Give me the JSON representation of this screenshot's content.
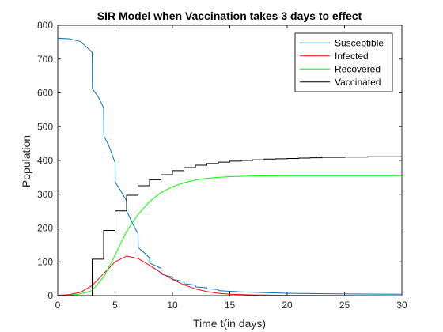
{
  "chart_data": {
    "type": "line",
    "title": "SIR Model when Vaccination takes 3 days to effect",
    "xlabel": "Time t(in days)",
    "ylabel": "Population",
    "xlim": [
      0,
      30
    ],
    "ylim": [
      0,
      800
    ],
    "xticks": [
      0,
      5,
      10,
      15,
      20,
      25,
      30
    ],
    "yticks": [
      0,
      100,
      200,
      300,
      400,
      500,
      600,
      700,
      800
    ],
    "grid": false,
    "legend_position": "top-right",
    "series": [
      {
        "name": "Susceptible",
        "color": "#0072bd",
        "step": false,
        "points": [
          [
            0,
            762
          ],
          [
            1,
            760
          ],
          [
            2,
            752
          ],
          [
            3,
            720
          ],
          [
            3.02,
            612
          ],
          [
            3.5,
            590
          ],
          [
            4,
            556
          ],
          [
            4.02,
            473
          ],
          [
            4.5,
            440
          ],
          [
            5,
            393
          ],
          [
            5.02,
            335
          ],
          [
            5.5,
            310
          ],
          [
            6,
            280
          ],
          [
            6.02,
            250
          ],
          [
            6.5,
            215
          ],
          [
            7,
            183
          ],
          [
            7.02,
            142
          ],
          [
            7.5,
            128
          ],
          [
            8,
            112
          ],
          [
            8.02,
            96
          ],
          [
            8.5,
            89
          ],
          [
            9,
            81
          ],
          [
            9.02,
            64
          ],
          [
            9.5,
            59
          ],
          [
            10,
            55
          ],
          [
            10.02,
            48
          ],
          [
            11,
            42
          ],
          [
            11.02,
            35
          ],
          [
            12,
            31
          ],
          [
            12.02,
            26
          ],
          [
            13,
            23
          ],
          [
            13.02,
            20
          ],
          [
            14,
            18
          ],
          [
            14.02,
            15
          ],
          [
            15,
            13
          ],
          [
            16,
            11
          ],
          [
            17,
            10
          ],
          [
            18,
            9
          ],
          [
            20,
            7
          ],
          [
            25,
            5
          ],
          [
            30,
            4
          ]
        ]
      },
      {
        "name": "Infected",
        "color": "#ff0000",
        "step": false,
        "points": [
          [
            0,
            1
          ],
          [
            1,
            3
          ],
          [
            2,
            10
          ],
          [
            3,
            30
          ],
          [
            4,
            65
          ],
          [
            5,
            100
          ],
          [
            6,
            117
          ],
          [
            7,
            110
          ],
          [
            8,
            90
          ],
          [
            9,
            68
          ],
          [
            10,
            48
          ],
          [
            11,
            32
          ],
          [
            12,
            20
          ],
          [
            13,
            12
          ],
          [
            14,
            7
          ],
          [
            15,
            4
          ],
          [
            17,
            2
          ],
          [
            20,
            1
          ],
          [
            30,
            0
          ]
        ]
      },
      {
        "name": "Recovered",
        "color": "#00ff00",
        "step": false,
        "points": [
          [
            0,
            0
          ],
          [
            1,
            1
          ],
          [
            2,
            5
          ],
          [
            3,
            15
          ],
          [
            4,
            55
          ],
          [
            5,
            120
          ],
          [
            6,
            190
          ],
          [
            7,
            240
          ],
          [
            8,
            278
          ],
          [
            9,
            305
          ],
          [
            10,
            322
          ],
          [
            11,
            334
          ],
          [
            12,
            342
          ],
          [
            13,
            347
          ],
          [
            14,
            350
          ],
          [
            15,
            352
          ],
          [
            17,
            354
          ],
          [
            20,
            355
          ],
          [
            30,
            355
          ]
        ]
      },
      {
        "name": "Vaccinated",
        "color": "#000000",
        "step": true,
        "points": [
          [
            0,
            0
          ],
          [
            3,
            108
          ],
          [
            4,
            193
          ],
          [
            5,
            251
          ],
          [
            6,
            297
          ],
          [
            7,
            325
          ],
          [
            8,
            343
          ],
          [
            9,
            358
          ],
          [
            10,
            370
          ],
          [
            11,
            379
          ],
          [
            12,
            386
          ],
          [
            13,
            391
          ],
          [
            14,
            395
          ],
          [
            15,
            398
          ],
          [
            16,
            400
          ],
          [
            17,
            402
          ],
          [
            18,
            404
          ],
          [
            19,
            405
          ],
          [
            20,
            406
          ],
          [
            21,
            407
          ],
          [
            22,
            408
          ],
          [
            23,
            409
          ],
          [
            24,
            409
          ],
          [
            25,
            410
          ],
          [
            26,
            410
          ],
          [
            27,
            411
          ],
          [
            28,
            411
          ],
          [
            29,
            411
          ],
          [
            30,
            411
          ]
        ]
      }
    ]
  }
}
